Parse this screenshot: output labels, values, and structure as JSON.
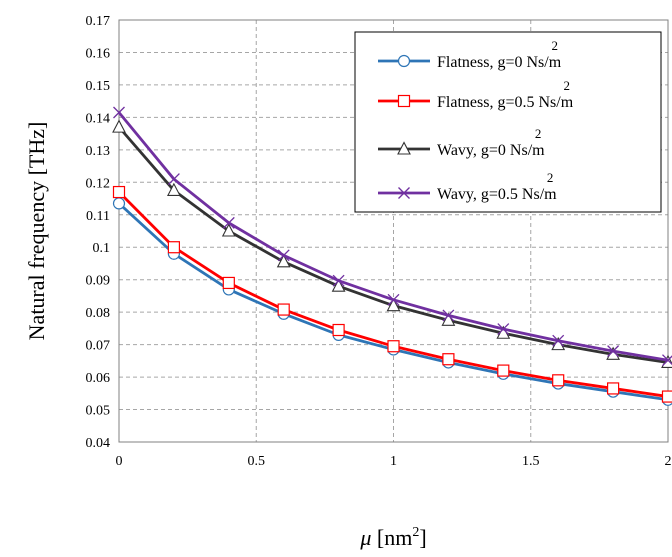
{
  "chart_data": {
    "type": "line",
    "xlabel": {
      "symbol": "μ",
      "text": " [nm",
      "sup": "2",
      "close": "]"
    },
    "ylabel": "Natural frequency [THz]",
    "xlim": [
      0,
      2
    ],
    "ylim": [
      0.04,
      0.17
    ],
    "x_ticks": [
      0,
      0.5,
      1,
      1.5,
      2
    ],
    "x_tick_labels": [
      "0",
      "0.5",
      "1",
      "1.5",
      "2"
    ],
    "y_ticks": [
      0.04,
      0.05,
      0.06,
      0.07,
      0.08,
      0.09,
      0.1,
      0.11,
      0.12,
      0.13,
      0.14,
      0.15,
      0.16,
      0.17
    ],
    "y_tick_labels": [
      "0.04",
      "0.05",
      "0.06",
      "0.07",
      "0.08",
      "0.09",
      "0.1",
      "0.11",
      "0.12",
      "0.13",
      "0.14",
      "0.15",
      "0.16",
      "0.17"
    ],
    "grid": true,
    "legend_position": "top-right",
    "x": [
      0,
      0.2,
      0.4,
      0.6,
      0.8,
      1.0,
      1.2,
      1.4,
      1.6,
      1.8,
      2.0
    ],
    "series": [
      {
        "name": "Flatness, g=0 Ns/m",
        "sup": "2",
        "color": "#2e75b6",
        "marker": "circle",
        "values": [
          0.1135,
          0.098,
          0.087,
          0.0795,
          0.073,
          0.0685,
          0.0645,
          0.061,
          0.058,
          0.0555,
          0.053
        ]
      },
      {
        "name": "Flatness, g=0.5 Ns/m",
        "sup": "2",
        "color": "#ff0000",
        "marker": "square",
        "values": [
          0.117,
          0.1,
          0.089,
          0.0808,
          0.0745,
          0.0695,
          0.0655,
          0.062,
          0.059,
          0.0565,
          0.054
        ]
      },
      {
        "name": "Wavy, g=0 Ns/m",
        "sup": "2",
        "color": "#333333",
        "marker": "triangle",
        "values": [
          0.137,
          0.1175,
          0.105,
          0.0955,
          0.088,
          0.082,
          0.0775,
          0.0735,
          0.07,
          0.067,
          0.0645
        ]
      },
      {
        "name": "Wavy, g=0.5 Ns/m",
        "sup": "2",
        "color": "#7030a0",
        "marker": "x",
        "values": [
          0.1415,
          0.121,
          0.1075,
          0.0975,
          0.0897,
          0.0838,
          0.079,
          0.0748,
          0.0712,
          0.068,
          0.0652
        ]
      }
    ]
  }
}
